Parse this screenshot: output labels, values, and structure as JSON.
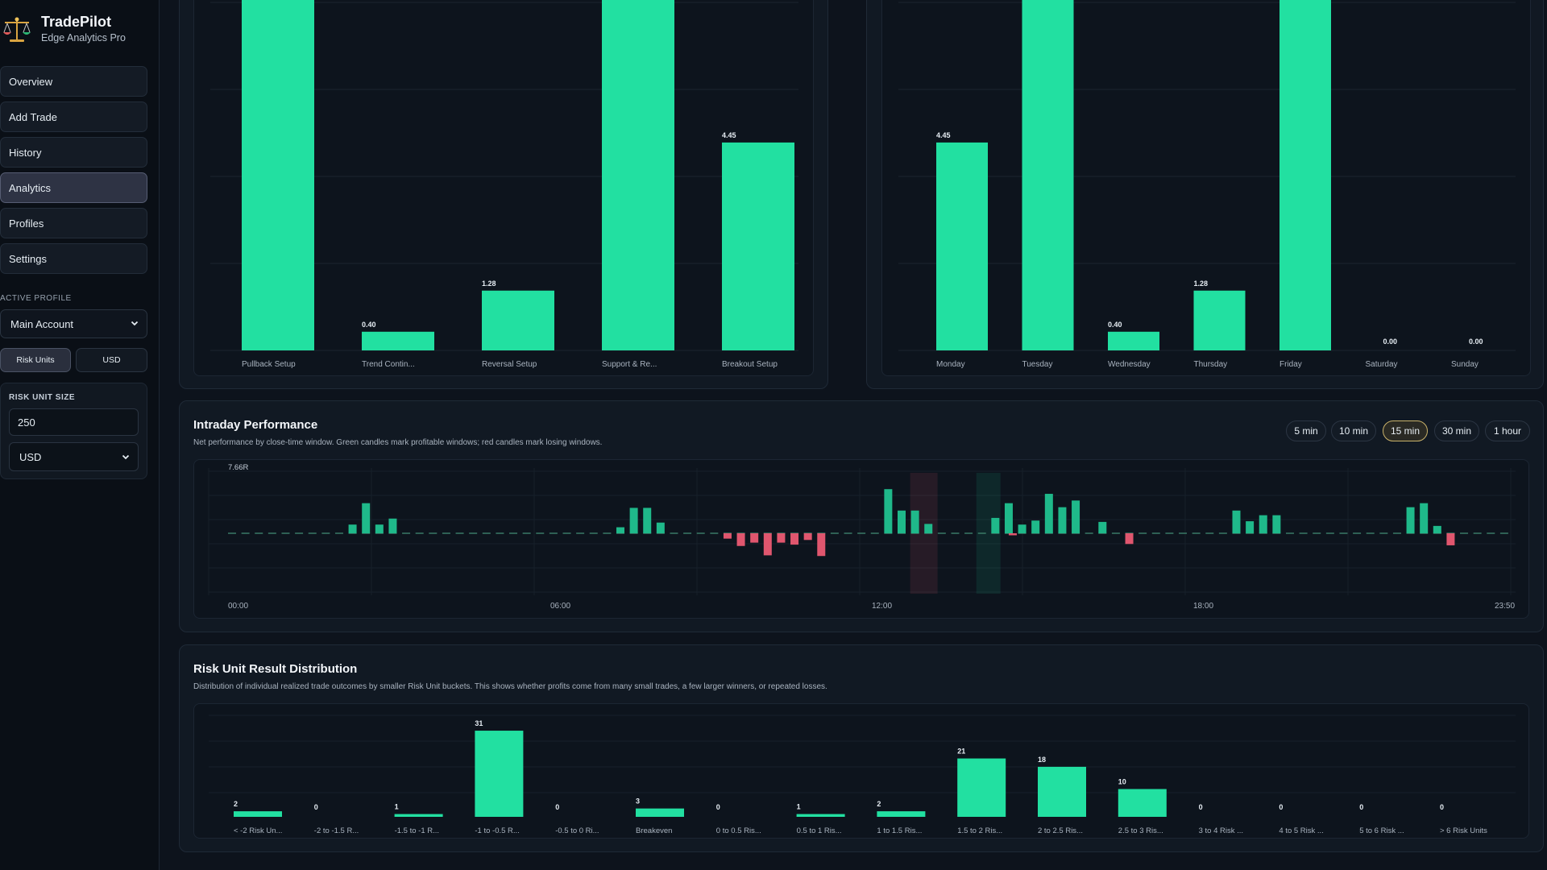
{
  "app": {
    "name": "TradePilot",
    "subtitle": "Edge Analytics Pro"
  },
  "sidebar": {
    "nav": [
      {
        "label": "Overview",
        "active": false
      },
      {
        "label": "Add Trade",
        "active": false
      },
      {
        "label": "History",
        "active": false
      },
      {
        "label": "Analytics",
        "active": true
      },
      {
        "label": "Profiles",
        "active": false
      },
      {
        "label": "Settings",
        "active": false
      }
    ],
    "active_profile_label": "ACTIVE PROFILE",
    "active_profile_value": "Main Account",
    "unit_toggle": [
      {
        "label": "Risk Units",
        "active": true
      },
      {
        "label": "USD",
        "active": false
      }
    ],
    "risk_unit_label": "RISK UNIT SIZE",
    "risk_unit_value": "250",
    "currency_value": "USD"
  },
  "colors": {
    "positive": "#22e0a1",
    "negative": "#e0566e",
    "accent_active": "#c9b26a"
  },
  "setup_chart": {
    "categories": [
      "Pullback Setup",
      "Trend Contin...",
      "Reversal Setup",
      "Support & Re...",
      "Breakout Setup"
    ],
    "values": [
      null,
      0.4,
      1.28,
      null,
      4.45
    ],
    "labels": [
      "",
      "0.40",
      "1.28",
      "",
      "4.45"
    ]
  },
  "weekday_chart": {
    "categories": [
      "Monday",
      "Tuesday",
      "Wednesday",
      "Thursday",
      "Friday",
      "Saturday",
      "Sunday"
    ],
    "values": [
      4.45,
      null,
      0.4,
      1.28,
      null,
      0.0,
      0.0
    ],
    "labels": [
      "4.45",
      "",
      "0.40",
      "1.28",
      "",
      "0.00",
      "0.00"
    ]
  },
  "intraday": {
    "title": "Intraday Performance",
    "description": "Net performance by close-time window. Green candles mark profitable windows; red candles mark losing windows.",
    "timeframes": [
      {
        "label": "5 min",
        "active": false
      },
      {
        "label": "10 min",
        "active": false
      },
      {
        "label": "15 min",
        "active": true
      },
      {
        "label": "30 min",
        "active": false
      },
      {
        "label": "1 hour",
        "active": false
      }
    ],
    "y_max_label": "7.66R",
    "x_ticks": [
      "00:00",
      "06:00",
      "12:00",
      "18:00",
      "23:50"
    ]
  },
  "distribution": {
    "title": "Risk Unit Result Distribution",
    "description": "Distribution of individual realized trade outcomes by smaller Risk Unit buckets. This shows whether profits come from many small trades, a few larger winners, or repeated losses.",
    "categories": [
      "< -2 Risk Un...",
      "-2 to -1.5 R...",
      "-1.5 to -1 R...",
      "-1 to -0.5 R...",
      "-0.5 to 0 Ri...",
      "Breakeven",
      "0 to 0.5 Ris...",
      "0.5 to 1 Ris...",
      "1 to 1.5 Ris...",
      "1.5 to 2 Ris...",
      "2 to 2.5 Ris...",
      "2.5 to 3 Ris...",
      "3 to 4 Risk ...",
      "4 to 5 Risk ...",
      "5 to 6 Risk ...",
      "> 6 Risk Units"
    ],
    "values": [
      2,
      0,
      1,
      31,
      0,
      3,
      0,
      1,
      2,
      21,
      18,
      10,
      0,
      0,
      0,
      0
    ]
  },
  "chart_data": [
    {
      "type": "bar",
      "categories": [
        "Pullback Setup",
        "Trend Contin...",
        "Reversal Setup",
        "Support & Re...",
        "Breakout Setup"
      ],
      "values": [
        null,
        0.4,
        1.28,
        null,
        4.45
      ]
    },
    {
      "type": "bar",
      "categories": [
        "Monday",
        "Tuesday",
        "Wednesday",
        "Thursday",
        "Friday",
        "Saturday",
        "Sunday"
      ],
      "values": [
        4.45,
        null,
        0.4,
        1.28,
        null,
        0.0,
        0.0
      ]
    },
    {
      "type": "bar",
      "title": "Intraday Performance",
      "x_ticks": [
        "00:00",
        "06:00",
        "12:00",
        "18:00",
        "23:50"
      ],
      "ylim_top": 7.66,
      "x": [
        9,
        10,
        11,
        12,
        40,
        41,
        42,
        43,
        48,
        49,
        50,
        51,
        52,
        53,
        54,
        55,
        56,
        57,
        58,
        59,
        66,
        67,
        68,
        69,
        70,
        71,
        72,
        73,
        74,
        75,
        76,
        77,
        84,
        85,
        86,
        87,
        88,
        91,
        92,
        93,
        94,
        95,
        96
      ],
      "values": [
        1.3,
        4.5,
        1.3,
        2.2,
        0.9,
        3.8,
        3.8,
        1.6,
        -0.8,
        -1.9,
        -1.4,
        -3.3,
        -1.4,
        -1.7,
        -1.0,
        -3.4,
        6.6,
        3.4,
        3.4,
        1.4,
        2.3,
        4.5,
        1.3,
        1.9,
        5.9,
        3.9,
        4.9,
        1.7,
        -1.6,
        3.4,
        1.8,
        2.7,
        2.7,
        3.9,
        1.1,
        -1.8,
        0.0,
        0.0,
        0.0,
        0.0,
        0.0,
        0.0,
        0.0
      ]
    },
    {
      "type": "bar",
      "title": "Risk Unit Result Distribution",
      "categories": [
        "< -2 Risk Un...",
        "-2 to -1.5 R...",
        "-1.5 to -1 R...",
        "-1 to -0.5 R...",
        "-0.5 to 0 Ri...",
        "Breakeven",
        "0 to 0.5 Ris...",
        "0.5 to 1 Ris...",
        "1 to 1.5 Ris...",
        "1.5 to 2 Ris...",
        "2 to 2.5 Ris...",
        "2.5 to 3 Ris...",
        "3 to 4 Risk ...",
        "4 to 5 Risk ...",
        "5 to 6 Risk ...",
        "> 6 Risk Units"
      ],
      "values": [
        2,
        0,
        1,
        31,
        0,
        3,
        0,
        1,
        2,
        21,
        18,
        10,
        0,
        0,
        0,
        0
      ]
    }
  ]
}
